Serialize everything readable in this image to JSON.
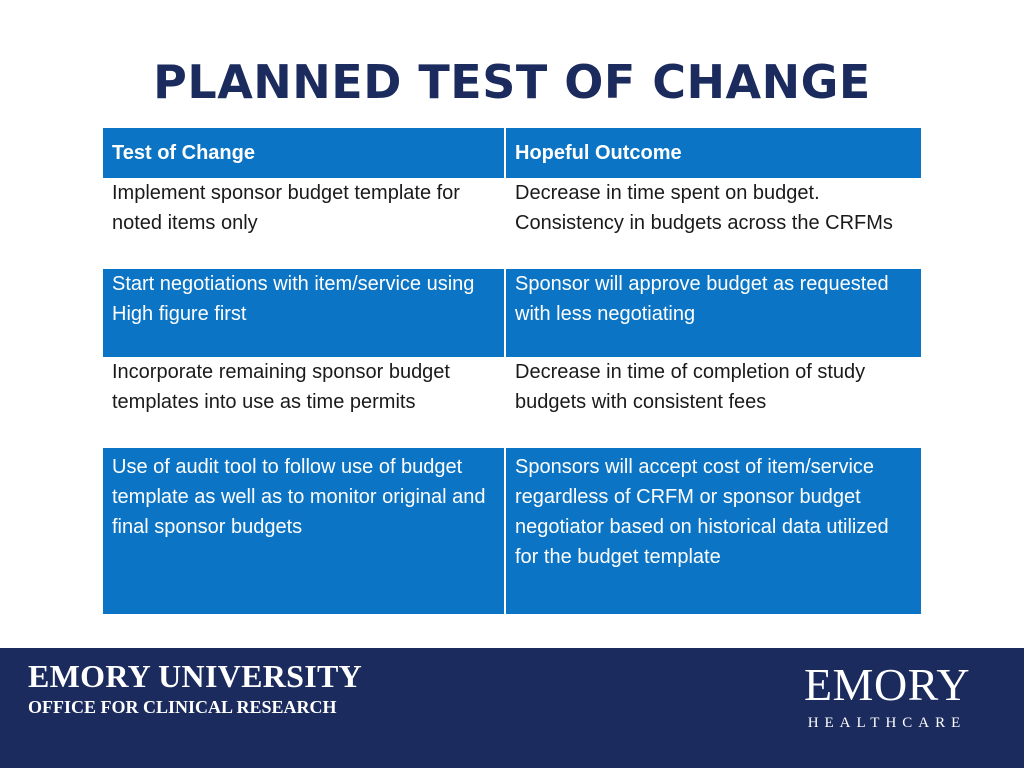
{
  "slide": {
    "title": "PLANNED TEST OF CHANGE"
  },
  "table": {
    "headers": [
      "Test of Change",
      "Hopeful Outcome"
    ],
    "rows": [
      [
        "Implement sponsor budget template for noted items only",
        "Decrease in time spent on budget. Consistency in budgets across the CRFMs"
      ],
      [
        "Start negotiations with item/service using High figure first",
        "Sponsor will approve budget as requested with less negotiating"
      ],
      [
        "Incorporate remaining sponsor budget templates into use as time permits",
        "Decrease in time of completion of study budgets with consistent fees"
      ],
      [
        "Use of audit tool to follow use of budget template as well as to monitor original and final sponsor budgets",
        "Sponsors will accept cost of item/service regardless of CRFM or sponsor budget negotiator based on historical data utilized for the budget template"
      ]
    ]
  },
  "footer": {
    "org": "EMORY UNIVERSITY",
    "dept": "OFFICE FOR CLINICAL RESEARCH",
    "logo_main": "EMORY",
    "logo_sub": "HEALTHCARE"
  },
  "colors": {
    "navy": "#1b2b5e",
    "blue": "#0b74c4",
    "white": "#ffffff"
  }
}
